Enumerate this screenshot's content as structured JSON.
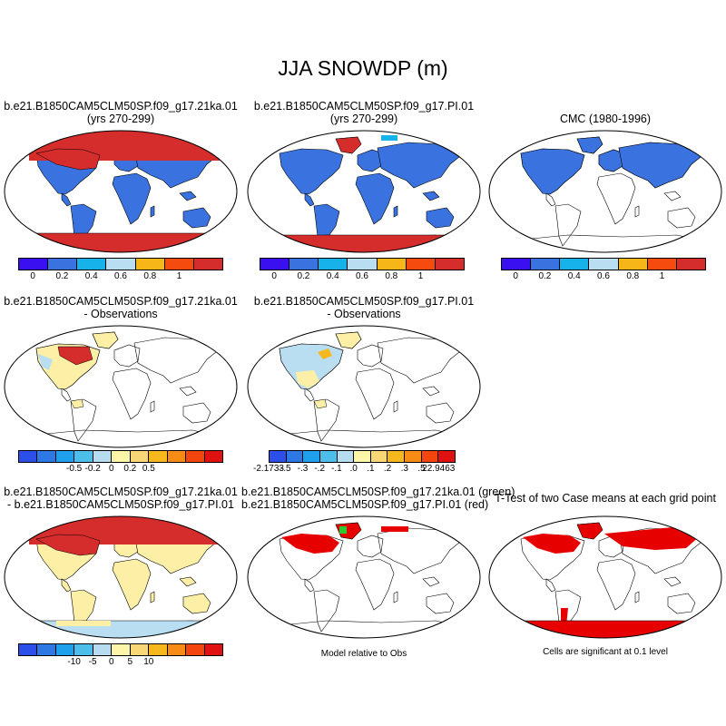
{
  "figure_title": "JJA SNOWDP (m)",
  "panels": [
    {
      "title_line1": "b.e21.B1850CAM5CLM50SP.f09_g17.21ka.01",
      "title_line2": "(yrs 270-299)"
    },
    {
      "title_line1": "b.e21.B1850CAM5CLM50SP.f09_g17.PI.01",
      "title_line2": "(yrs 270-299)"
    },
    {
      "title_line1": "CMC (1980-1996)",
      "title_line2": ""
    },
    {
      "title_line1": "b.e21.B1850CAM5CLM50SP.f09_g17.21ka.01",
      "title_line2": "- Observations"
    },
    {
      "title_line1": "b.e21.B1850CAM5CLM50SP.f09_g17.PI.01",
      "title_line2": "- Observations"
    },
    {
      "title_line1": "b.e21.B1850CAM5CLM50SP.f09_g17.21ka.01",
      "title_line2": "- b.e21.B1850CAM5CLM50SP.f09_g17.PI.01"
    },
    {
      "title_line1": "b.e21.B1850CAM5CLM50SP.f09_g17.21ka.01 (green)",
      "title_line2": "b.e21.B1850CAM5CLM50SP.f09_g17.PI.01 (red)"
    },
    {
      "title_line1": "T-Test of two Case means at each grid point",
      "title_line2": ""
    }
  ],
  "colorbars": {
    "absolute": {
      "colors": [
        "#3b10f0",
        "#3a73e0",
        "#17b2ea",
        "#b9def1",
        "#f7b618",
        "#f54b0f",
        "#d52c2c"
      ],
      "labels": [
        "0",
        "0.2",
        "0.4",
        "0.6",
        "0.8",
        "1"
      ]
    },
    "difference": {
      "colors": [
        "#3b10f0",
        "#2b4fe8",
        "#2e78e6",
        "#1ea0ec",
        "#4dbee9",
        "#b7dcf0",
        "#fdf5a8",
        "#f9d776",
        "#f6b81d",
        "#f88a16",
        "#f5450f",
        "#e01111",
        "#d52c2c"
      ],
      "labels_a": [
        "-0.5",
        "-0.2",
        "0",
        "0.2",
        "0.5"
      ],
      "labels_b": [
        "-2.1733",
        "-.5",
        "-.3",
        "-.2",
        "-.1",
        ".0",
        ".1",
        ".2",
        ".3",
        ".5",
        "22.9463"
      ],
      "labels_c": [
        "-10",
        "-5",
        "0",
        "5",
        "10"
      ]
    }
  },
  "notes": {
    "model_relative": "Model relative to Obs",
    "significance": "Cells are significant at 0.1 level"
  },
  "map_colors": {
    "land_blue": "#3a73e0",
    "snow_red": "#d52c2c",
    "diff_yellow": "#fdf0a6",
    "diff_lightblue": "#b9def1",
    "sig_red": "#e60000",
    "sig_green": "#2fc82f",
    "cyan": "#17b2ea"
  }
}
